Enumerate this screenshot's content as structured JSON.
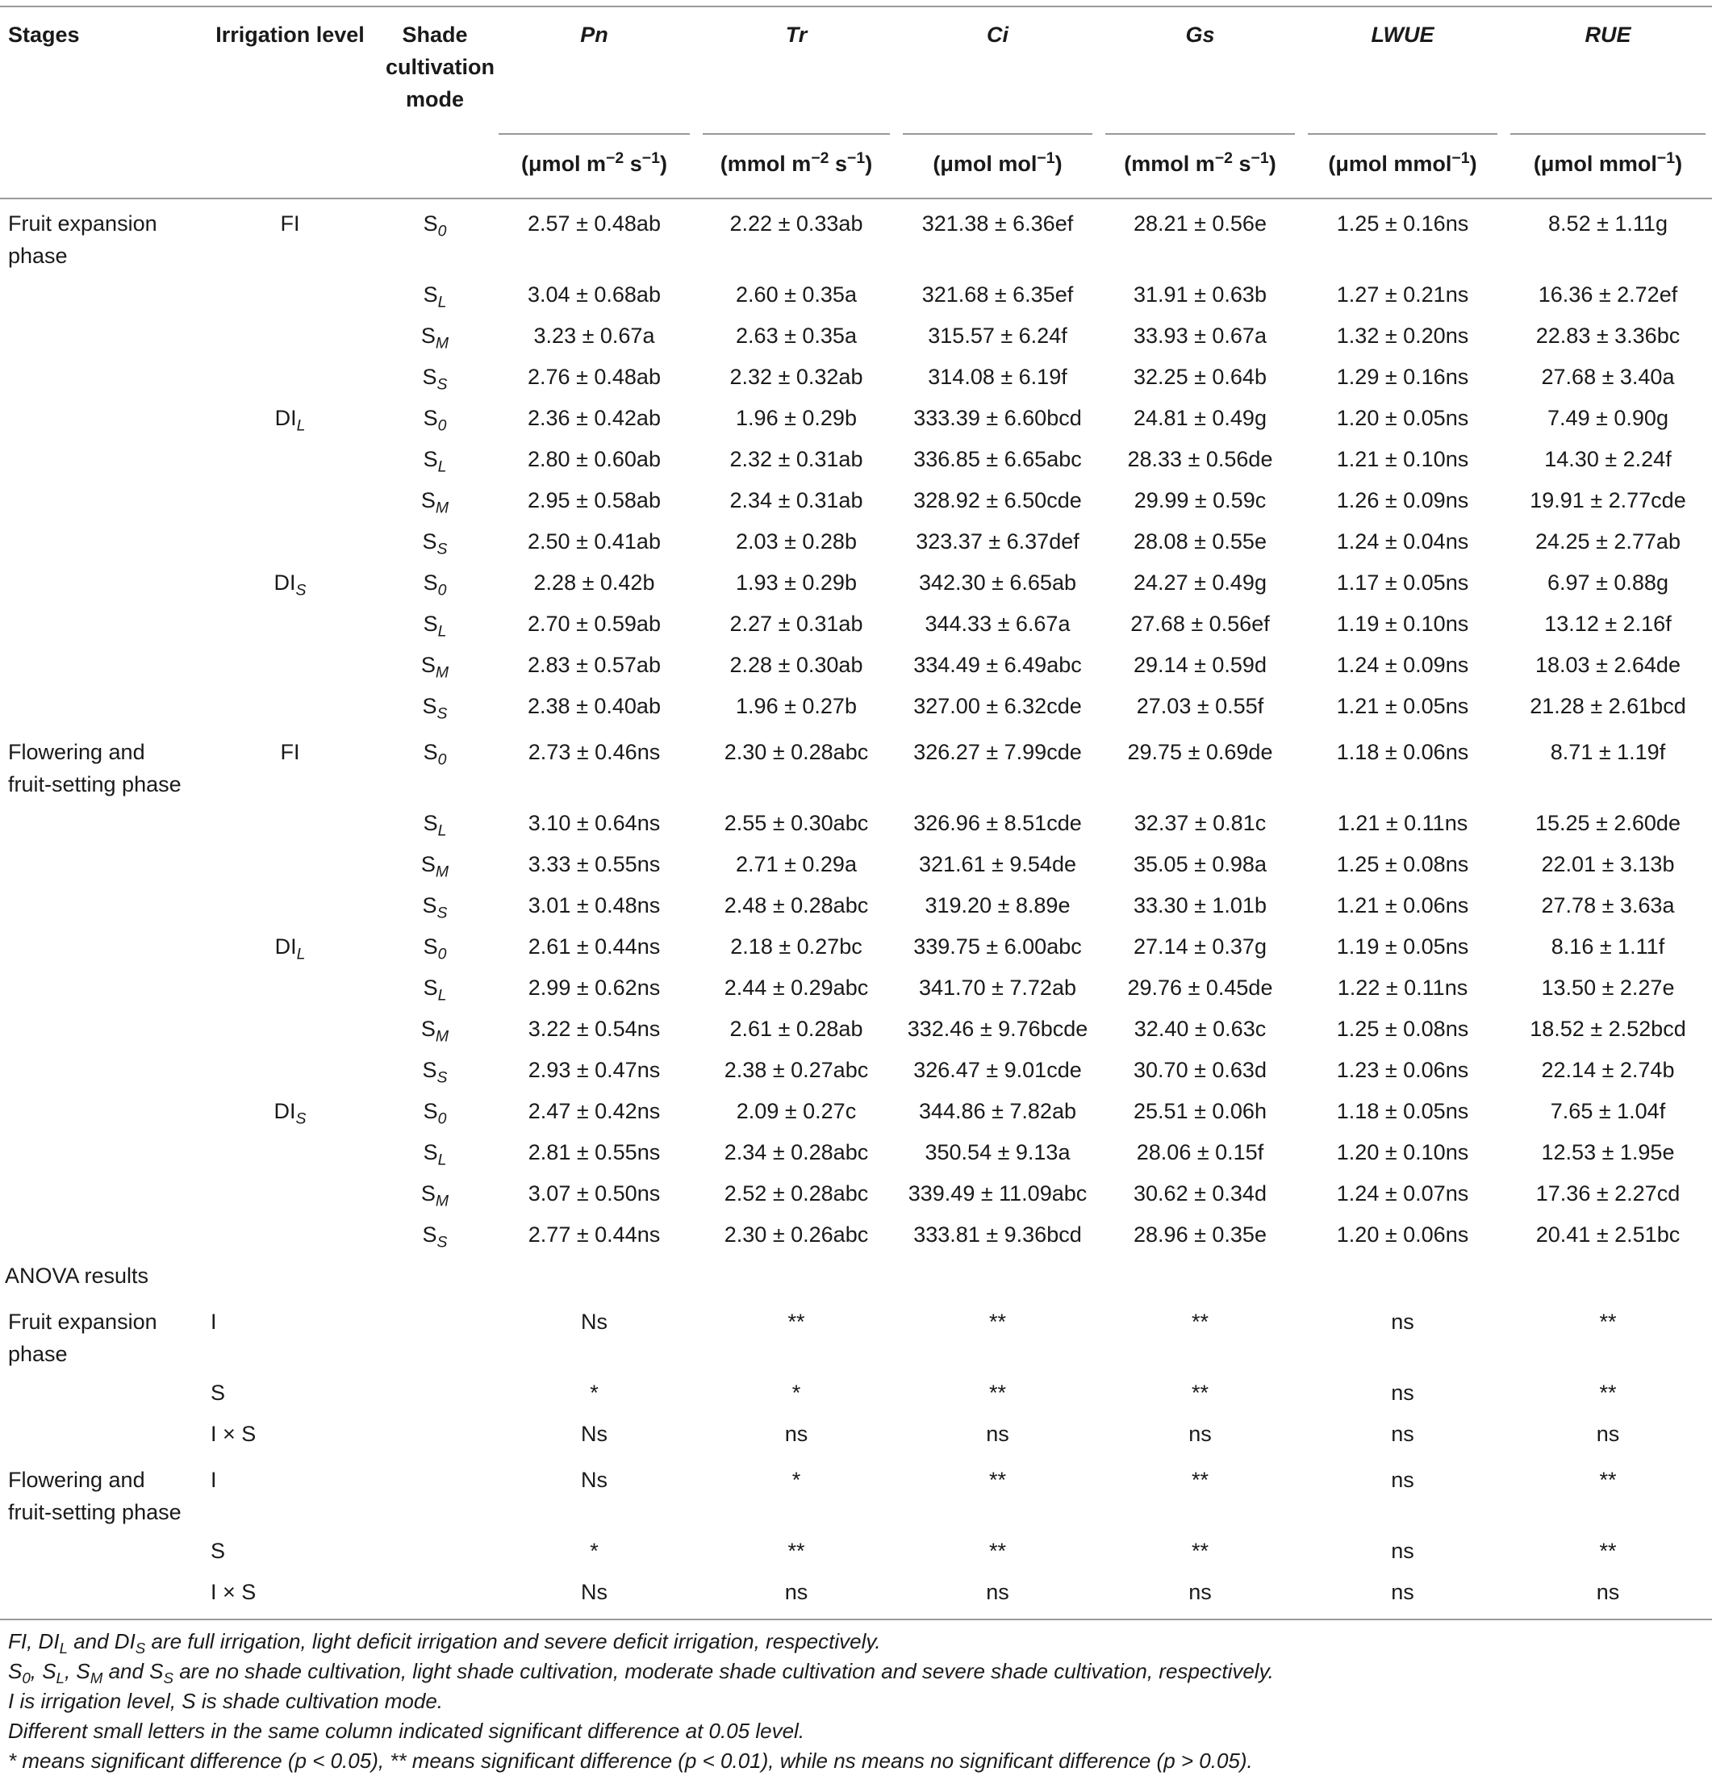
{
  "columns": [
    "Stages",
    "Irrigation level",
    "Shade cultivation mode",
    "Pn",
    "Tr",
    "Ci",
    "Gs",
    "LWUE",
    "RUE"
  ],
  "units": [
    [
      "(μmol m",
      {
        "sup": "−2"
      },
      " s",
      {
        "sup": "−1"
      },
      ")"
    ],
    [
      "(mmol m",
      {
        "sup": "−2"
      },
      " s",
      {
        "sup": "−1"
      },
      ")"
    ],
    [
      "(μmol mol",
      {
        "sup": "−1"
      },
      ")"
    ],
    [
      "(mmol m",
      {
        "sup": "−2"
      },
      " s",
      {
        "sup": "−1"
      },
      ")"
    ],
    [
      "(μmol mmol",
      {
        "sup": "−1"
      },
      ")"
    ],
    [
      "(μmol mmol",
      {
        "sup": "−1"
      },
      ")"
    ]
  ],
  "sections": [
    {
      "stage": "Fruit expansion phase",
      "groups": [
        {
          "irrigation": [
            "FI"
          ],
          "rows": [
            {
              "shade": [
                "S",
                {
                  "sub": "0"
                }
              ],
              "values": [
                "2.57 ± 0.48ab",
                "2.22 ± 0.33ab",
                "321.38 ± 6.36ef",
                "28.21 ± 0.56e",
                "1.25 ± 0.16ns",
                "8.52 ± 1.11g"
              ]
            },
            {
              "shade": [
                "S",
                {
                  "sub": "L"
                }
              ],
              "values": [
                "3.04 ± 0.68ab",
                "2.60 ± 0.35a",
                "321.68 ± 6.35ef",
                "31.91 ± 0.63b",
                "1.27 ± 0.21ns",
                "16.36 ± 2.72ef"
              ]
            },
            {
              "shade": [
                "S",
                {
                  "sub": "M"
                }
              ],
              "values": [
                "3.23 ± 0.67a",
                "2.63 ± 0.35a",
                "315.57 ± 6.24f",
                "33.93 ± 0.67a",
                "1.32 ± 0.20ns",
                "22.83 ± 3.36bc"
              ]
            },
            {
              "shade": [
                "S",
                {
                  "sub": "S"
                }
              ],
              "values": [
                "2.76 ± 0.48ab",
                "2.32 ± 0.32ab",
                "314.08 ± 6.19f",
                "32.25 ± 0.64b",
                "1.29 ± 0.16ns",
                "27.68 ± 3.40a"
              ]
            }
          ]
        },
        {
          "irrigation": [
            "DI",
            {
              "sub": "L"
            }
          ],
          "rows": [
            {
              "shade": [
                "S",
                {
                  "sub": "0"
                }
              ],
              "values": [
                "2.36 ± 0.42ab",
                "1.96 ± 0.29b",
                "333.39 ± 6.60bcd",
                "24.81 ± 0.49g",
                "1.20 ± 0.05ns",
                "7.49 ± 0.90g"
              ]
            },
            {
              "shade": [
                "S",
                {
                  "sub": "L"
                }
              ],
              "values": [
                "2.80 ± 0.60ab",
                "2.32 ± 0.31ab",
                "336.85 ± 6.65abc",
                "28.33 ± 0.56de",
                "1.21 ± 0.10ns",
                "14.30 ± 2.24f"
              ]
            },
            {
              "shade": [
                "S",
                {
                  "sub": "M"
                }
              ],
              "values": [
                "2.95 ± 0.58ab",
                "2.34 ± 0.31ab",
                "328.92 ± 6.50cde",
                "29.99 ± 0.59c",
                "1.26 ± 0.09ns",
                "19.91 ± 2.77cde"
              ]
            },
            {
              "shade": [
                "S",
                {
                  "sub": "S"
                }
              ],
              "values": [
                "2.50 ± 0.41ab",
                "2.03 ± 0.28b",
                "323.37 ± 6.37def",
                "28.08 ± 0.55e",
                "1.24 ± 0.04ns",
                "24.25 ± 2.77ab"
              ]
            }
          ]
        },
        {
          "irrigation": [
            "DI",
            {
              "sub": "S"
            }
          ],
          "rows": [
            {
              "shade": [
                "S",
                {
                  "sub": "0"
                }
              ],
              "values": [
                "2.28 ± 0.42b",
                "1.93 ± 0.29b",
                "342.30 ± 6.65ab",
                "24.27 ± 0.49g",
                "1.17 ± 0.05ns",
                "6.97 ± 0.88g"
              ]
            },
            {
              "shade": [
                "S",
                {
                  "sub": "L"
                }
              ],
              "values": [
                "2.70 ± 0.59ab",
                "2.27 ± 0.31ab",
                "344.33 ± 6.67a",
                "27.68 ± 0.56ef",
                "1.19 ± 0.10ns",
                "13.12 ± 2.16f"
              ]
            },
            {
              "shade": [
                "S",
                {
                  "sub": "M"
                }
              ],
              "values": [
                "2.83 ± 0.57ab",
                "2.28 ± 0.30ab",
                "334.49 ± 6.49abc",
                "29.14 ± 0.59d",
                "1.24 ± 0.09ns",
                "18.03 ± 2.64de"
              ]
            },
            {
              "shade": [
                "S",
                {
                  "sub": "S"
                }
              ],
              "values": [
                "2.38 ± 0.40ab",
                "1.96 ± 0.27b",
                "327.00 ± 6.32cde",
                "27.03 ± 0.55f",
                "1.21 ± 0.05ns",
                "21.28 ± 2.61bcd"
              ]
            }
          ]
        }
      ]
    },
    {
      "stage": "Flowering and fruit-setting phase",
      "groups": [
        {
          "irrigation": [
            "FI"
          ],
          "rows": [
            {
              "shade": [
                "S",
                {
                  "sub": "0"
                }
              ],
              "values": [
                "2.73 ± 0.46ns",
                "2.30 ± 0.28abc",
                "326.27 ± 7.99cde",
                "29.75 ± 0.69de",
                "1.18 ± 0.06ns",
                "8.71 ± 1.19f"
              ]
            },
            {
              "shade": [
                "S",
                {
                  "sub": "L"
                }
              ],
              "values": [
                "3.10 ± 0.64ns",
                "2.55 ± 0.30abc",
                "326.96 ± 8.51cde",
                "32.37 ± 0.81c",
                "1.21 ± 0.11ns",
                "15.25 ± 2.60de"
              ]
            },
            {
              "shade": [
                "S",
                {
                  "sub": "M"
                }
              ],
              "values": [
                "3.33 ± 0.55ns",
                "2.71 ± 0.29a",
                "321.61 ± 9.54de",
                "35.05 ± 0.98a",
                "1.25 ± 0.08ns",
                "22.01 ± 3.13b"
              ]
            },
            {
              "shade": [
                "S",
                {
                  "sub": "S"
                }
              ],
              "values": [
                "3.01 ± 0.48ns",
                "2.48 ± 0.28abc",
                "319.20 ± 8.89e",
                "33.30 ± 1.01b",
                "1.21 ± 0.06ns",
                "27.78 ± 3.63a"
              ]
            }
          ]
        },
        {
          "irrigation": [
            "DI",
            {
              "sub": "L"
            }
          ],
          "rows": [
            {
              "shade": [
                "S",
                {
                  "sub": "0"
                }
              ],
              "values": [
                "2.61 ± 0.44ns",
                "2.18 ± 0.27bc",
                "339.75 ± 6.00abc",
                "27.14 ± 0.37g",
                "1.19 ± 0.05ns",
                "8.16 ± 1.11f"
              ]
            },
            {
              "shade": [
                "S",
                {
                  "sub": "L"
                }
              ],
              "values": [
                "2.99 ± 0.62ns",
                "2.44 ± 0.29abc",
                "341.70 ± 7.72ab",
                "29.76 ± 0.45de",
                "1.22 ± 0.11ns",
                "13.50 ± 2.27e"
              ]
            },
            {
              "shade": [
                "S",
                {
                  "sub": "M"
                }
              ],
              "values": [
                "3.22 ± 0.54ns",
                "2.61 ± 0.28ab",
                "332.46 ± 9.76bcde",
                "32.40 ± 0.63c",
                "1.25 ± 0.08ns",
                "18.52 ± 2.52bcd"
              ]
            },
            {
              "shade": [
                "S",
                {
                  "sub": "S"
                }
              ],
              "values": [
                "2.93 ± 0.47ns",
                "2.38 ± 0.27abc",
                "326.47 ± 9.01cde",
                "30.70 ± 0.63d",
                "1.23 ± 0.06ns",
                "22.14 ± 2.74b"
              ]
            }
          ]
        },
        {
          "irrigation": [
            "DI",
            {
              "sub": "S"
            }
          ],
          "rows": [
            {
              "shade": [
                "S",
                {
                  "sub": "0"
                }
              ],
              "values": [
                "2.47 ± 0.42ns",
                "2.09 ± 0.27c",
                "344.86 ± 7.82ab",
                "25.51 ± 0.06h",
                "1.18 ± 0.05ns",
                "7.65 ± 1.04f"
              ]
            },
            {
              "shade": [
                "S",
                {
                  "sub": "L"
                }
              ],
              "values": [
                "2.81 ± 0.55ns",
                "2.34 ± 0.28abc",
                "350.54 ± 9.13a",
                "28.06 ± 0.15f",
                "1.20 ± 0.10ns",
                "12.53 ± 1.95e"
              ]
            },
            {
              "shade": [
                "S",
                {
                  "sub": "M"
                }
              ],
              "values": [
                "3.07 ± 0.50ns",
                "2.52 ± 0.28abc",
                "339.49 ± 11.09abc",
                "30.62 ± 0.34d",
                "1.24 ± 0.07ns",
                "17.36 ± 2.27cd"
              ]
            },
            {
              "shade": [
                "S",
                {
                  "sub": "S"
                }
              ],
              "values": [
                "2.77 ± 0.44ns",
                "2.30 ± 0.26abc",
                "333.81 ± 9.36bcd",
                "28.96 ± 0.35e",
                "1.20 ± 0.06ns",
                "20.41 ± 2.51bc"
              ]
            }
          ]
        }
      ]
    }
  ],
  "anova": {
    "title": "ANOVA results",
    "sections": [
      {
        "stage": "Fruit expansion phase",
        "rows": [
          {
            "factor": "I",
            "values": [
              "Ns",
              "**",
              "**",
              "**",
              "ns",
              "**"
            ]
          },
          {
            "factor": "S",
            "values": [
              "*",
              "*",
              "**",
              "**",
              "ns",
              "**"
            ]
          },
          {
            "factor": "I × S",
            "values": [
              "Ns",
              "ns",
              "ns",
              "ns",
              "ns",
              "ns"
            ]
          }
        ]
      },
      {
        "stage": "Flowering and fruit-setting phase",
        "rows": [
          {
            "factor": "I",
            "values": [
              "Ns",
              "*",
              "**",
              "**",
              "ns",
              "**"
            ]
          },
          {
            "factor": "S",
            "values": [
              "*",
              "**",
              "**",
              "**",
              "ns",
              "**"
            ]
          },
          {
            "factor": "I × S",
            "values": [
              "Ns",
              "ns",
              "ns",
              "ns",
              "ns",
              "ns"
            ]
          }
        ]
      }
    ]
  },
  "footnotes": [
    [
      "FI, DI",
      {
        "sub": "L"
      },
      " and DI",
      {
        "sub": "S"
      },
      " are full irrigation, light deficit irrigation and severe deficit irrigation, respectively."
    ],
    [
      "S",
      {
        "sub": "0"
      },
      ", S",
      {
        "sub": "L"
      },
      ", S",
      {
        "sub": "M"
      },
      " and S",
      {
        "sub": "S"
      },
      " are no shade cultivation, light shade cultivation, moderate shade cultivation and severe shade cultivation, respectively."
    ],
    [
      "I is irrigation level, S is shade cultivation mode."
    ],
    [
      "Different small letters in the same column indicated significant difference at 0.05 level."
    ],
    [
      "* means significant difference (p < 0.05), ** means significant difference (p < 0.01), while ns means no significant difference (p > 0.05)."
    ]
  ]
}
